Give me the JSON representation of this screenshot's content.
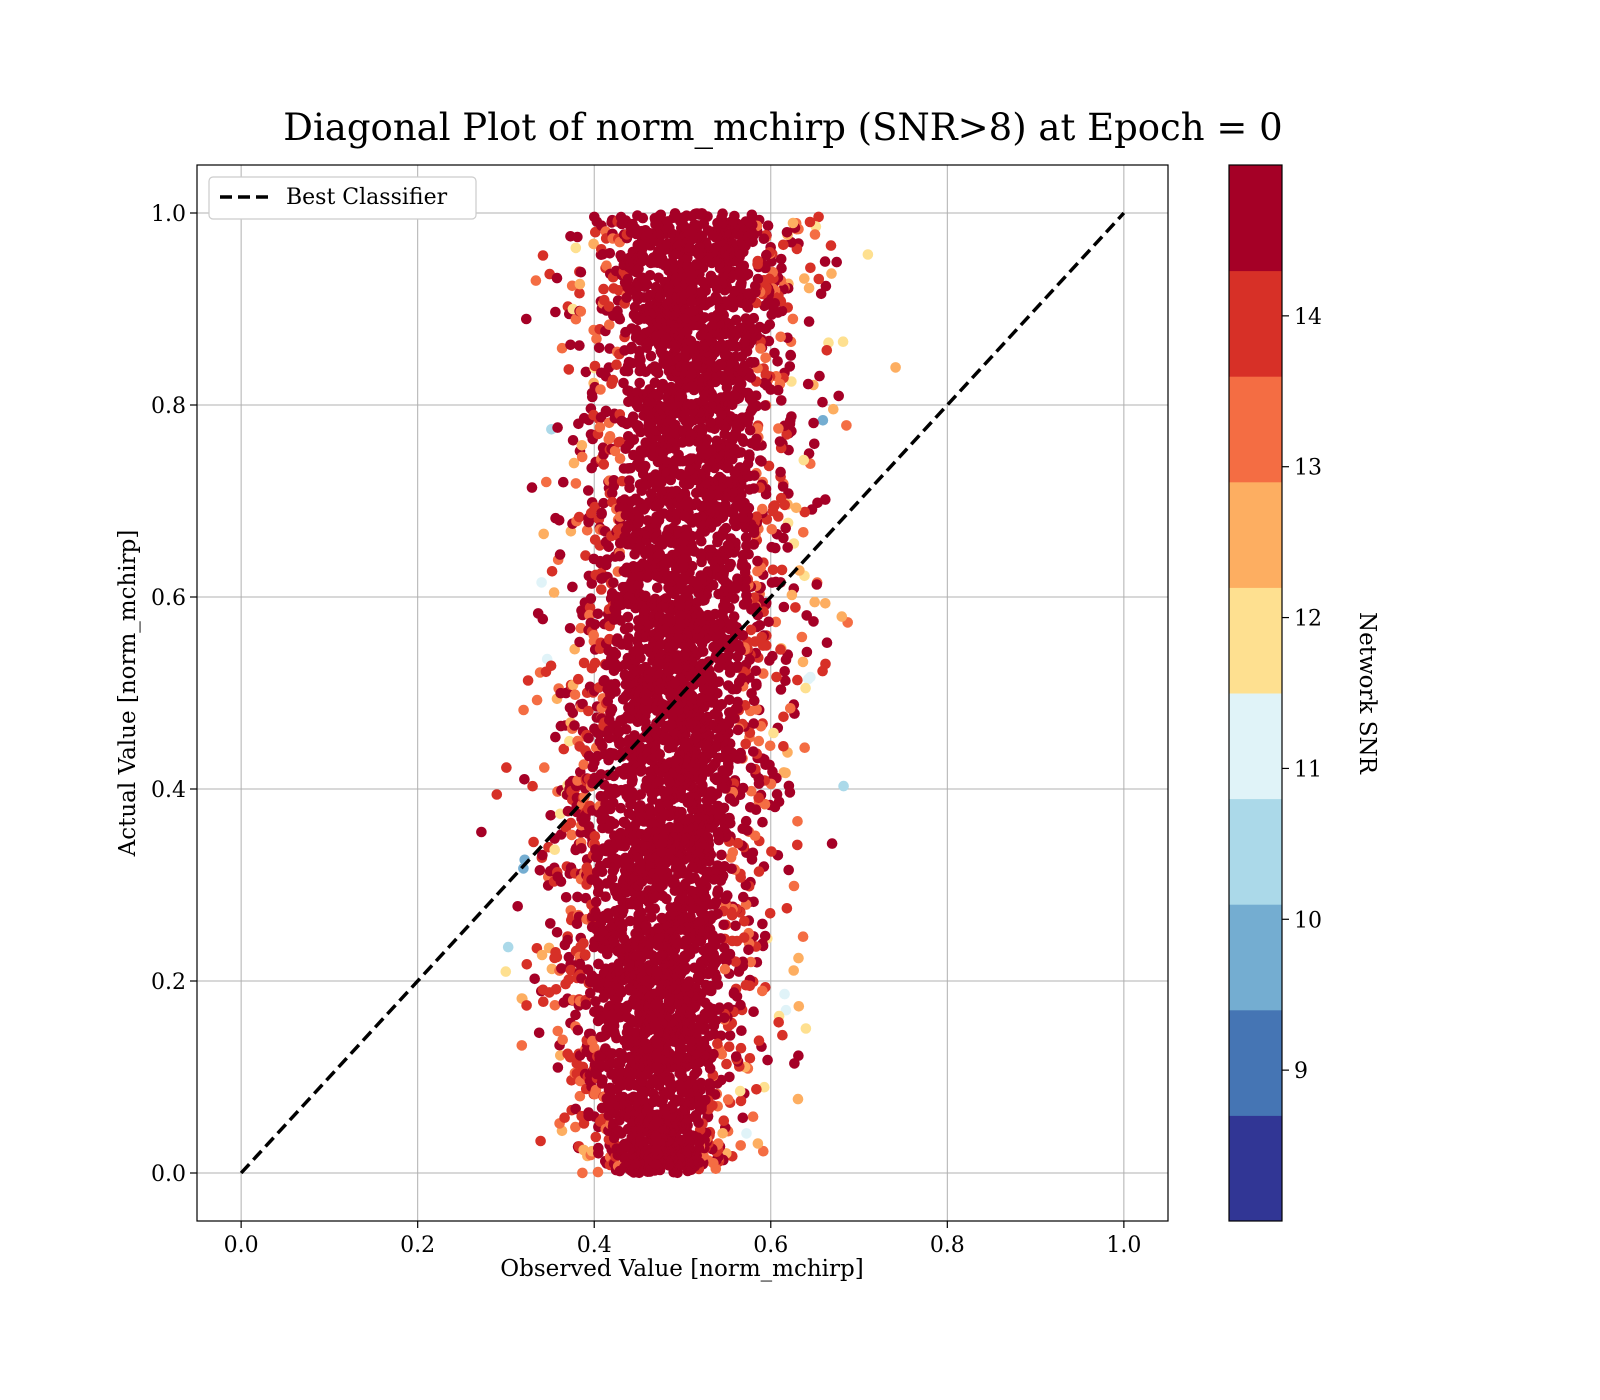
{
  "chart_data": {
    "type": "scatter",
    "title": "Diagonal Plot of norm_mchirp (SNR>8) at Epoch = 0",
    "xlabel": "Observed Value [norm_mchirp]",
    "ylabel": "Actual Value [norm_mchirp]",
    "xlim": [
      -0.05,
      1.05
    ],
    "ylim": [
      -0.05,
      1.05
    ],
    "xticks": [
      "0.0",
      "0.2",
      "0.4",
      "0.6",
      "0.8",
      "1.0"
    ],
    "yticks": [
      "0.0",
      "0.2",
      "0.4",
      "0.6",
      "0.8",
      "1.0"
    ],
    "grid": true,
    "legend": {
      "placement": "upper-left",
      "entries": [
        "Best Classifier"
      ]
    },
    "reference_line": {
      "name": "Best Classifier",
      "style": "dashed",
      "color": "#000000",
      "x": [
        0,
        1
      ],
      "y": [
        0,
        1
      ]
    },
    "cloud": {
      "description_center_x_by_y": [
        [
          0.0,
          0.47
        ],
        [
          0.2,
          0.47
        ],
        [
          0.4,
          0.48
        ],
        [
          0.6,
          0.5
        ],
        [
          0.8,
          0.51
        ],
        [
          1.0,
          0.51
        ]
      ],
      "x_spread": 0.11,
      "y_range": [
        0.0,
        1.0
      ]
    },
    "colorbar": {
      "label": "Network SNR",
      "range": [
        8,
        15
      ],
      "ticks": [
        "9",
        "10",
        "11",
        "12",
        "13",
        "14"
      ],
      "tick_values": [
        9,
        10,
        11,
        12,
        13,
        14
      ],
      "colors": [
        "#313695",
        "#4575b4",
        "#74add1",
        "#abd9e9",
        "#e0f3f8",
        "#fee090",
        "#fdae61",
        "#f46d43",
        "#d73027",
        "#a50026"
      ],
      "band_edges": [
        8.0,
        8.7,
        9.4,
        10.1,
        10.8,
        11.5,
        12.2,
        12.9,
        13.6,
        14.3,
        15.0
      ]
    }
  }
}
